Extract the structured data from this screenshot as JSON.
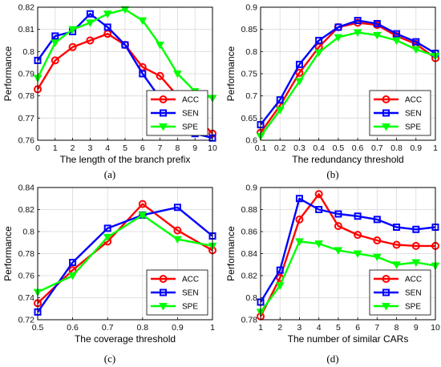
{
  "figure": {
    "colors": {
      "ACC": "#ff0000",
      "SEN": "#0000ff",
      "SPE": "#00ff00"
    },
    "markers": {
      "ACC": "circle",
      "SEN": "square",
      "SPE": "triangle-down"
    },
    "legend_position": "bottom-right"
  },
  "chart_data": [
    {
      "type": "line",
      "caption": "(a)",
      "xlabel": "The length of the branch prefix",
      "ylabel": "Performance",
      "x": [
        0,
        1,
        2,
        3,
        4,
        5,
        6,
        7,
        8,
        9,
        10
      ],
      "xlim": [
        0,
        10
      ],
      "ylim": [
        0.76,
        0.82
      ],
      "xticks": [
        "0",
        "1",
        "2",
        "3",
        "4",
        "5",
        "6",
        "7",
        "8",
        "9",
        "10"
      ],
      "yticks": [
        "0.76",
        "0.77",
        "0.78",
        "0.79",
        "0.8",
        "0.81",
        "0.82"
      ],
      "grid": true,
      "legend": "bottom-right",
      "series": [
        {
          "name": "ACC",
          "values": [
            0.783,
            0.796,
            0.802,
            0.805,
            0.808,
            0.803,
            0.793,
            0.789,
            0.78,
            0.771,
            0.763
          ]
        },
        {
          "name": "SEN",
          "values": [
            0.796,
            0.807,
            0.809,
            0.817,
            0.811,
            0.803,
            0.79,
            0.779,
            0.771,
            0.763,
            0.761
          ]
        },
        {
          "name": "SPE",
          "values": [
            0.788,
            0.804,
            0.81,
            0.813,
            0.817,
            0.819,
            0.814,
            0.803,
            0.79,
            0.782,
            0.779
          ]
        }
      ]
    },
    {
      "type": "line",
      "caption": "(b)",
      "xlabel": "The redundancy threshold",
      "ylabel": "Performance",
      "x": [
        0.1,
        0.2,
        0.3,
        0.4,
        0.5,
        0.6,
        0.7,
        0.8,
        0.9,
        1
      ],
      "xlim": [
        0.1,
        1
      ],
      "ylim": [
        0.6,
        0.9
      ],
      "xticks": [
        "0.1",
        "0.2",
        "0.3",
        "0.4",
        "0.5",
        "0.6",
        "0.7",
        "0.8",
        "0.9",
        "1"
      ],
      "yticks": [
        "0.6",
        "0.65",
        "0.7",
        "0.75",
        "0.8",
        "0.85",
        "0.9"
      ],
      "grid": true,
      "legend": "bottom-right",
      "series": [
        {
          "name": "ACC",
          "values": [
            0.617,
            0.678,
            0.752,
            0.81,
            0.855,
            0.865,
            0.86,
            0.835,
            0.817,
            0.785
          ]
        },
        {
          "name": "SEN",
          "values": [
            0.635,
            0.691,
            0.771,
            0.825,
            0.855,
            0.87,
            0.863,
            0.84,
            0.822,
            0.796
          ]
        },
        {
          "name": "SPE",
          "values": [
            0.609,
            0.668,
            0.733,
            0.798,
            0.832,
            0.843,
            0.837,
            0.825,
            0.805,
            0.79
          ]
        }
      ]
    },
    {
      "type": "line",
      "caption": "(c)",
      "xlabel": "The coverage threshold",
      "ylabel": "Performance",
      "x": [
        0.5,
        0.6,
        0.7,
        0.8,
        0.9,
        1
      ],
      "xlim": [
        0.5,
        1
      ],
      "ylim": [
        0.72,
        0.84
      ],
      "xticks": [
        "0.5",
        "0.6",
        "0.7",
        "0.8",
        "0.9",
        "1"
      ],
      "yticks": [
        "0.72",
        "0.74",
        "0.76",
        "0.78",
        "0.8",
        "0.82",
        "0.84"
      ],
      "grid": true,
      "legend": "bottom-right",
      "series": [
        {
          "name": "ACC",
          "values": [
            0.735,
            0.765,
            0.791,
            0.825,
            0.801,
            0.783
          ]
        },
        {
          "name": "SEN",
          "values": [
            0.727,
            0.772,
            0.803,
            0.815,
            0.822,
            0.796
          ]
        },
        {
          "name": "SPE",
          "values": [
            0.745,
            0.76,
            0.795,
            0.815,
            0.793,
            0.787
          ]
        }
      ]
    },
    {
      "type": "line",
      "caption": "(d)",
      "xlabel": "The number of similar CARs",
      "ylabel": "Performance",
      "x": [
        1,
        2,
        3,
        4,
        5,
        6,
        7,
        8,
        9,
        10
      ],
      "xlim": [
        1,
        10
      ],
      "ylim": [
        0.78,
        0.9
      ],
      "xticks": [
        "1",
        "2",
        "3",
        "4",
        "5",
        "6",
        "7",
        "8",
        "9",
        "10"
      ],
      "yticks": [
        "0.78",
        "0.8",
        "0.82",
        "0.84",
        "0.86",
        "0.88",
        "0.9"
      ],
      "grid": true,
      "legend": "bottom-right",
      "series": [
        {
          "name": "ACC",
          "values": [
            0.783,
            0.818,
            0.871,
            0.894,
            0.865,
            0.857,
            0.852,
            0.848,
            0.847,
            0.847
          ]
        },
        {
          "name": "SEN",
          "values": [
            0.796,
            0.825,
            0.89,
            0.88,
            0.876,
            0.874,
            0.871,
            0.864,
            0.862,
            0.864
          ]
        },
        {
          "name": "SPE",
          "values": [
            0.787,
            0.811,
            0.851,
            0.849,
            0.843,
            0.84,
            0.837,
            0.83,
            0.832,
            0.829
          ]
        }
      ]
    }
  ]
}
